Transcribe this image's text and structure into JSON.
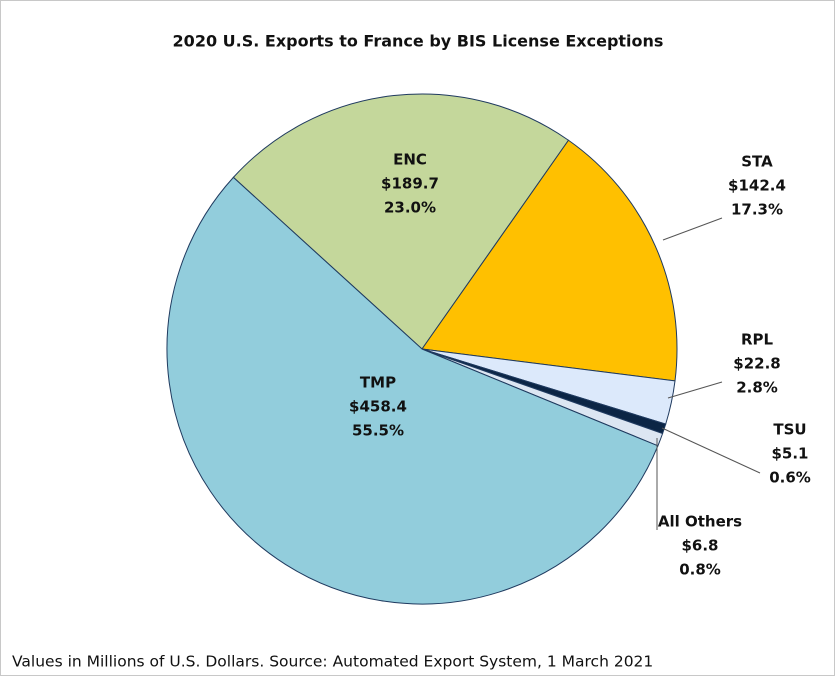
{
  "chart_data": {
    "type": "pie",
    "title": "2020 U.S. Exports to France by BIS License Exceptions",
    "footnote": "Values in Millions of U.S. Dollars. Source: Automated Export System, 1 March 2021",
    "categories": [
      "ENC",
      "STA",
      "RPL",
      "TSU",
      "All Others",
      "TMP"
    ],
    "values": [
      189.7,
      142.4,
      22.8,
      5.1,
      6.8,
      458.4
    ],
    "value_labels": [
      "$189.7",
      "$142.4",
      "$22.8",
      "$5.1",
      "$6.8",
      "$458.4"
    ],
    "percents": [
      23.0,
      17.3,
      2.8,
      0.6,
      0.8,
      55.5
    ],
    "percent_labels": [
      "23.0%",
      "17.3%",
      "2.8%",
      "0.6%",
      "0.8%",
      "55.5%"
    ],
    "colors": [
      "#c4d79b",
      "#ffc000",
      "#dce9fb",
      "#0b2545",
      "#dce6f2",
      "#92cddc"
    ]
  }
}
